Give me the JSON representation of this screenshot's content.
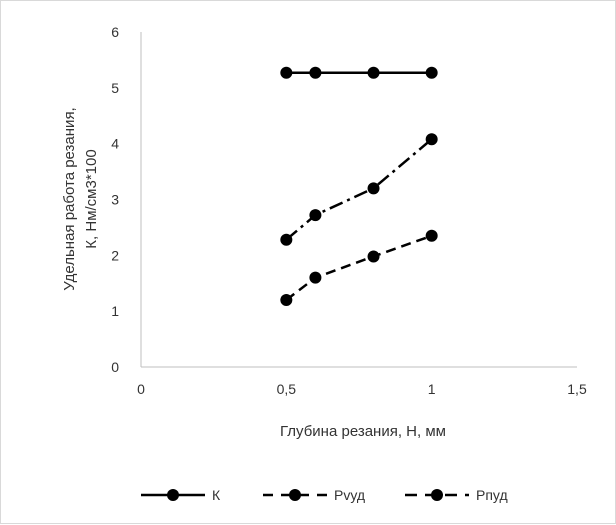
{
  "chart_data": {
    "type": "line",
    "title": "",
    "xlabel": "Глубина резания, Н, мм",
    "ylabel_lines": [
      "Удельная работа резания,",
      "К, Нм/см3*100"
    ],
    "xlim": [
      0,
      1.5
    ],
    "ylim": [
      0,
      6
    ],
    "x_ticks": [
      "0",
      "0,5",
      "1",
      "1,5"
    ],
    "y_ticks": [
      "0",
      "1",
      "2",
      "3",
      "4",
      "5",
      "6"
    ],
    "x_tick_values": [
      0,
      0.5,
      1,
      1.5
    ],
    "y_tick_values": [
      0,
      1,
      2,
      3,
      4,
      5,
      6
    ],
    "grid": false,
    "legend_position": "bottom",
    "series": [
      {
        "name": "К",
        "line_style": "solid",
        "color": "#000000",
        "x": [
          0.5,
          0.6,
          0.8,
          1.0
        ],
        "y": [
          5.27,
          5.27,
          5.27,
          5.27
        ]
      },
      {
        "name": "Рvуд",
        "line_style": "dashed",
        "color": "#000000",
        "x": [
          0.5,
          0.6,
          0.8,
          1.0
        ],
        "y": [
          1.2,
          1.6,
          1.98,
          2.35
        ]
      },
      {
        "name": "Рпуд",
        "line_style": "dash-dot",
        "color": "#000000",
        "x": [
          0.5,
          0.6,
          0.8,
          1.0
        ],
        "y": [
          2.28,
          2.72,
          3.2,
          4.08
        ]
      }
    ]
  }
}
